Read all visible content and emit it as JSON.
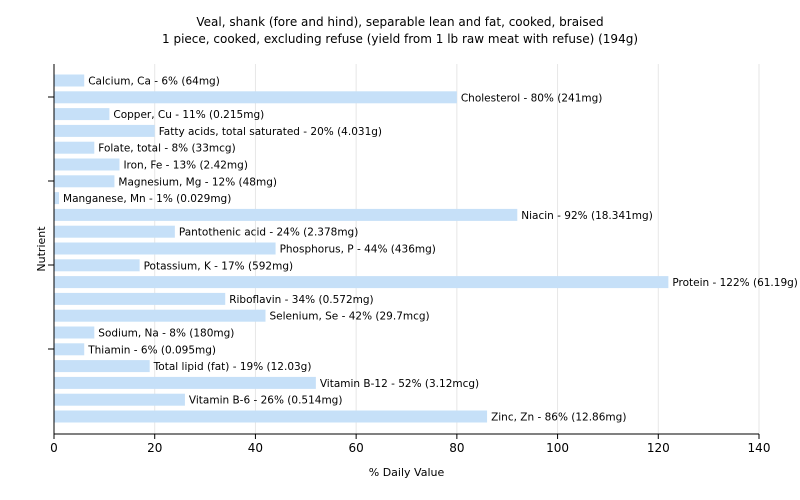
{
  "chart_data": {
    "type": "bar",
    "orientation": "horizontal",
    "title": "Veal, shank (fore and hind), separable lean and fat, cooked, braised",
    "subtitle": "1 piece, cooked, excluding refuse (yield from 1 lb raw meat with refuse) (194g)",
    "xlabel": "% Daily Value",
    "ylabel": "Nutrient",
    "xlim": [
      0,
      140
    ],
    "xticks": [
      0,
      20,
      40,
      60,
      80,
      100,
      120,
      140
    ],
    "grid": true,
    "bar_color": "#c6e0f8",
    "categories": [
      "Calcium, Ca",
      "Cholesterol",
      "Copper, Cu",
      "Fatty acids, total saturated",
      "Folate, total",
      "Iron, Fe",
      "Magnesium, Mg",
      "Manganese, Mn",
      "Niacin",
      "Pantothenic acid",
      "Phosphorus, P",
      "Potassium, K",
      "Protein",
      "Riboflavin",
      "Selenium, Se",
      "Sodium, Na",
      "Thiamin",
      "Total lipid (fat)",
      "Vitamin B-12",
      "Vitamin B-6",
      "Zinc, Zn"
    ],
    "values": [
      6,
      80,
      11,
      20,
      8,
      13,
      12,
      1,
      92,
      24,
      44,
      17,
      122,
      34,
      42,
      8,
      6,
      19,
      52,
      26,
      86
    ],
    "labels": [
      "Calcium, Ca - 6% (64mg)",
      "Cholesterol - 80% (241mg)",
      "Copper, Cu - 11% (0.215mg)",
      "Fatty acids, total saturated - 20% (4.031g)",
      "Folate, total - 8% (33mcg)",
      "Iron, Fe - 13% (2.42mg)",
      "Magnesium, Mg - 12% (48mg)",
      "Manganese, Mn - 1% (0.029mg)",
      "Niacin - 92% (18.341mg)",
      "Pantothenic acid - 24% (2.378mg)",
      "Phosphorus, P - 44% (436mg)",
      "Potassium, K - 17% (592mg)",
      "Protein - 122% (61.19g)",
      "Riboflavin - 34% (0.572mg)",
      "Selenium, Se - 42% (29.7mcg)",
      "Sodium, Na - 8% (180mg)",
      "Thiamin - 6% (0.095mg)",
      "Total lipid (fat) - 19% (12.03g)",
      "Vitamin B-12 - 52% (3.12mcg)",
      "Vitamin B-6 - 26% (0.514mg)",
      "Zinc, Zn - 86% (12.86mg)"
    ]
  }
}
